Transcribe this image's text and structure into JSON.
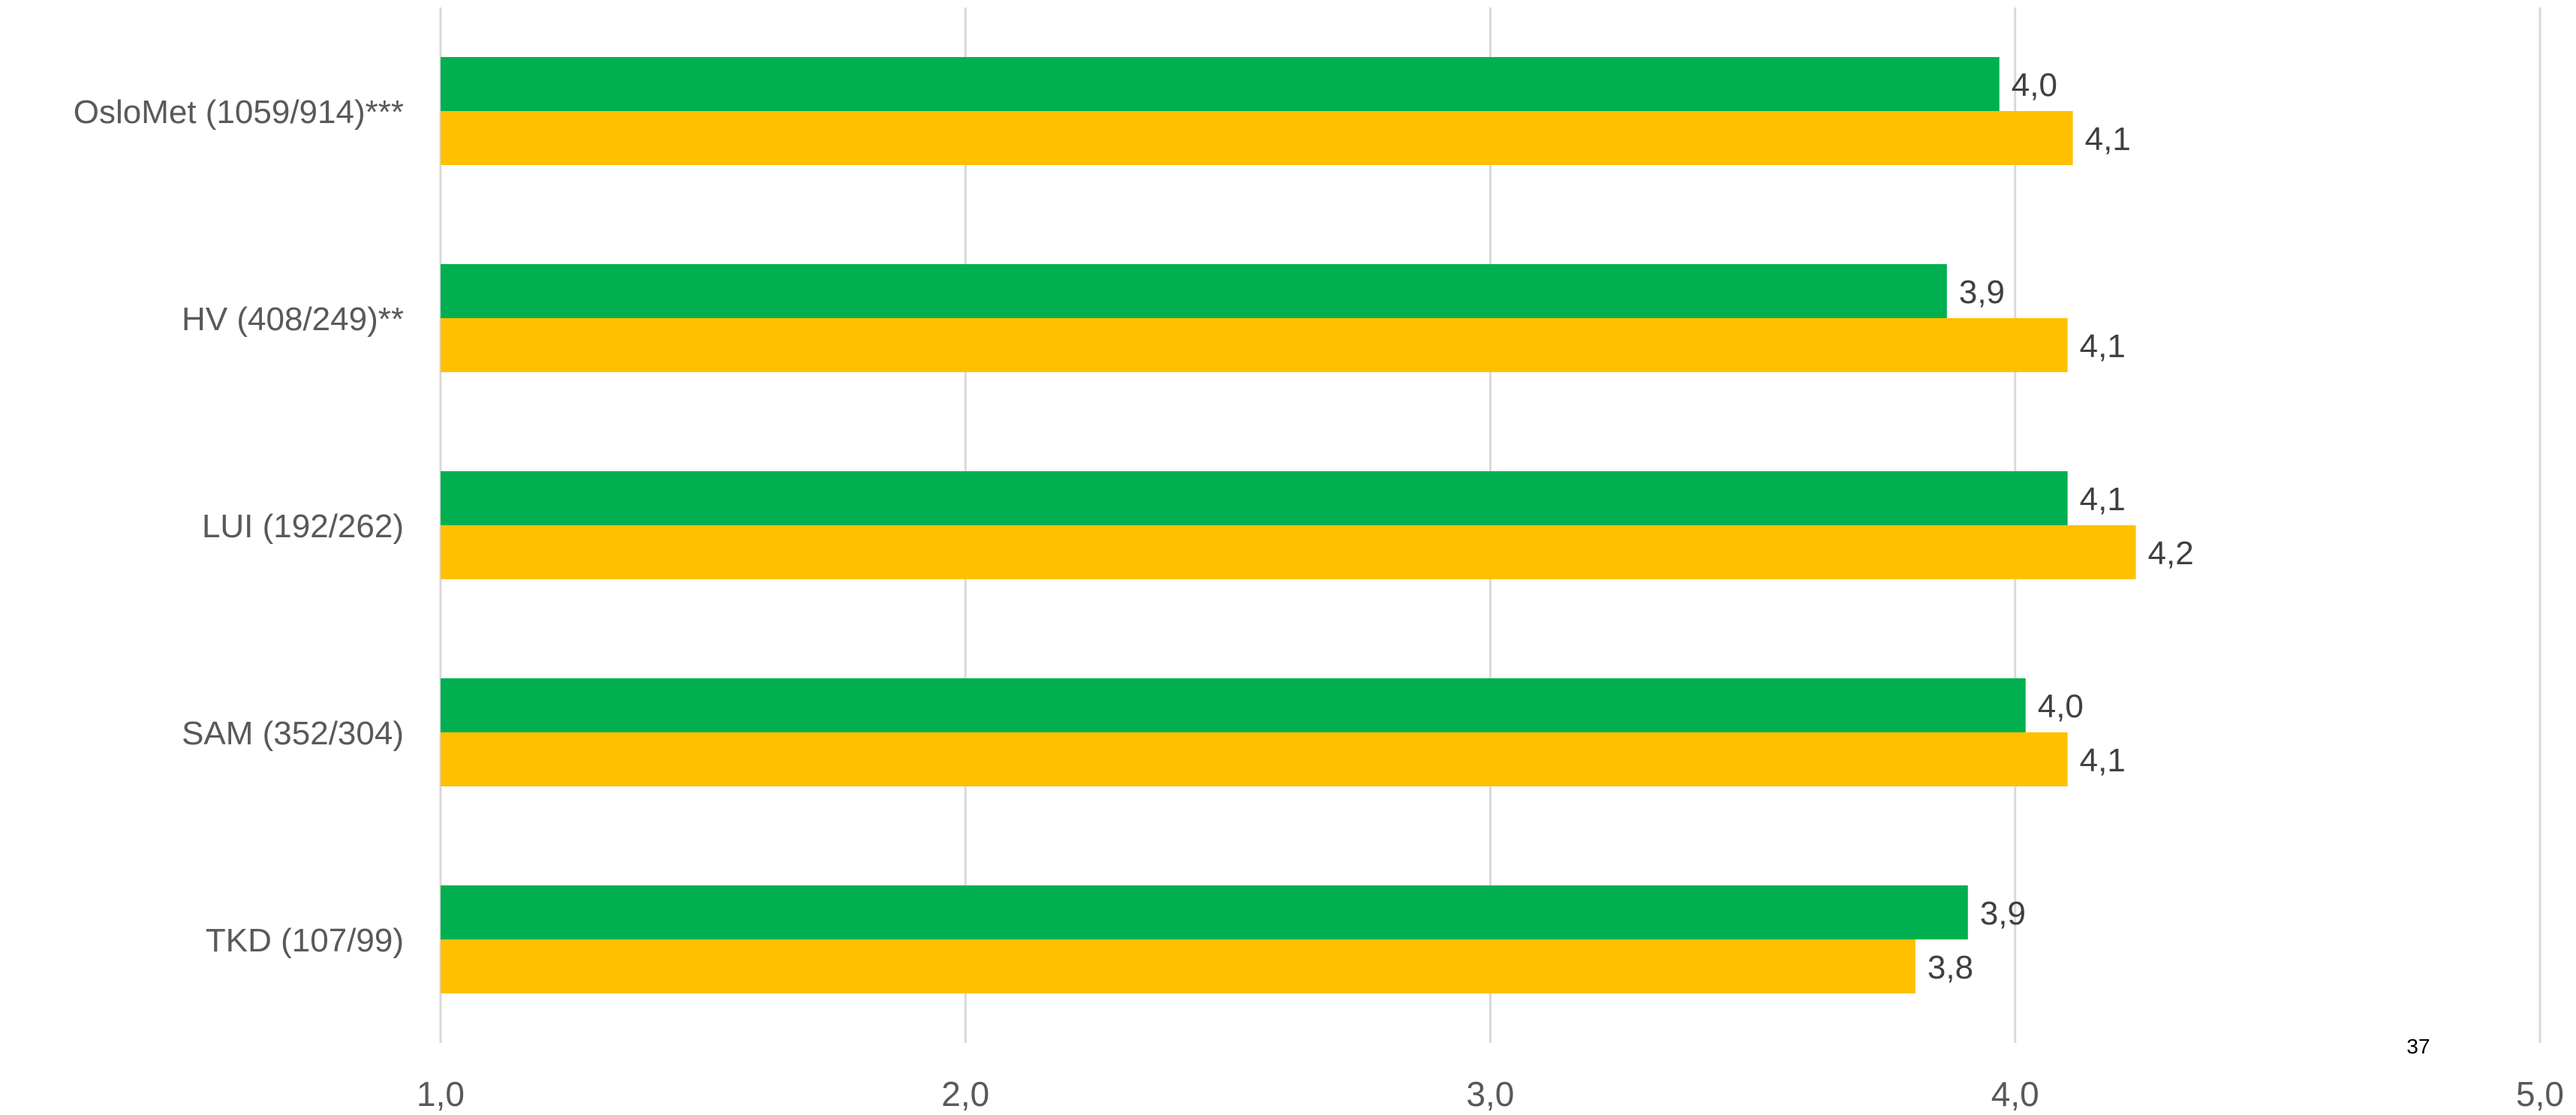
{
  "chart_data": {
    "type": "bar",
    "orientation": "horizontal",
    "categories": [
      "OsloMet (1059/914)***",
      "HV (408/249)**",
      "LUI (192/262)",
      "SAM (352/304)",
      "TKD (107/99)"
    ],
    "series": [
      {
        "color": "#00B050",
        "values": [
          3.97,
          3.87,
          4.1,
          4.02,
          3.91
        ],
        "labels": [
          "4,0",
          "3,9",
          "4,1",
          "4,0",
          "3,9"
        ]
      },
      {
        "color": "#FFC000",
        "values": [
          4.11,
          4.1,
          4.23,
          4.1,
          3.81
        ],
        "labels": [
          "4,1",
          "4,1",
          "4,2",
          "4,1",
          "3,8"
        ]
      }
    ],
    "xlim": [
      1.0,
      5.0
    ],
    "x_ticks": [
      1.0,
      2.0,
      3.0,
      4.0,
      5.0
    ],
    "x_tick_labels": [
      "1,0",
      "2,0",
      "3,0",
      "4,0",
      "5,0"
    ],
    "grid": true,
    "gridline_color": "#D9D9D9",
    "legend": "none"
  },
  "page_number": "37"
}
